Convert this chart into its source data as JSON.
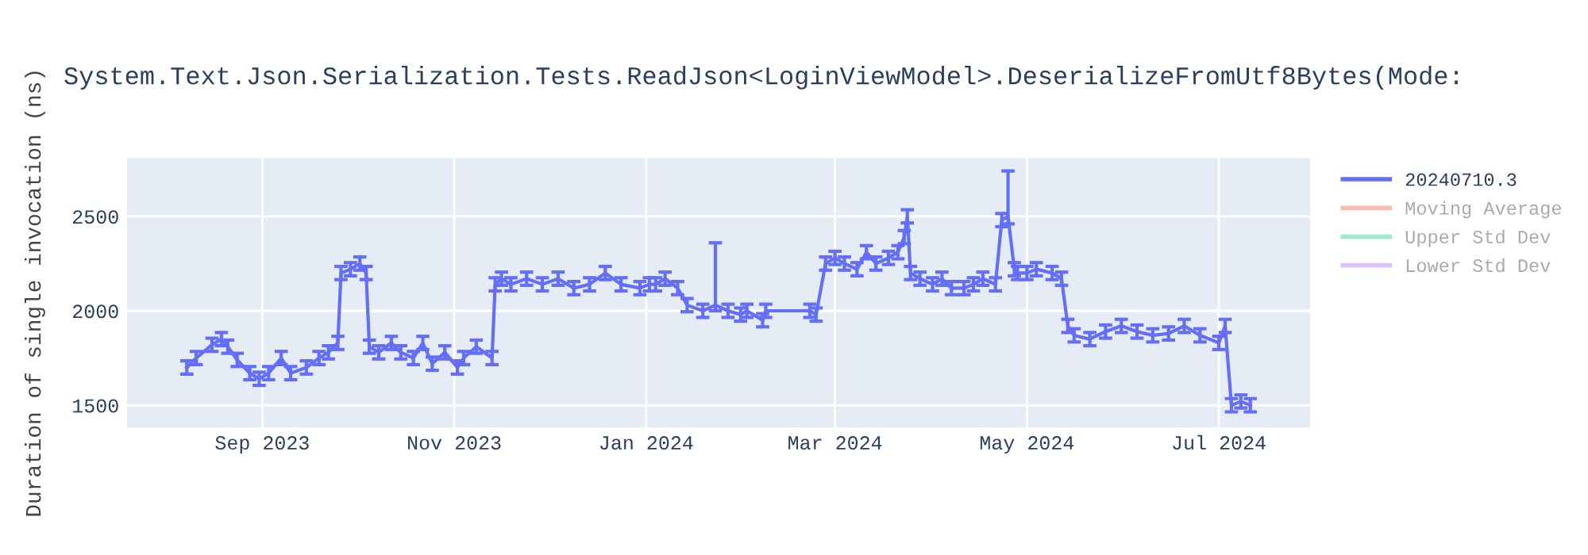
{
  "chart_data": {
    "type": "line",
    "title": "System.Text.Json.Serialization.Tests.ReadJson<LoginViewModel>.DeserializeFromUtf8Bytes(Mode:",
    "ylabel": "Duration of single invocation (ns)",
    "x": [
      "2023-08-08",
      "2023-08-11",
      "2023-08-16",
      "2023-08-19",
      "2023-08-21",
      "2023-08-24",
      "2023-08-28",
      "2023-08-31",
      "2023-09-03",
      "2023-09-07",
      "2023-09-10",
      "2023-09-15",
      "2023-09-19",
      "2023-09-22",
      "2023-09-25",
      "2023-09-26",
      "2023-09-29",
      "2023-10-02",
      "2023-10-04",
      "2023-10-05",
      "2023-10-08",
      "2023-10-12",
      "2023-10-15",
      "2023-10-19",
      "2023-10-22",
      "2023-10-25",
      "2023-10-29",
      "2023-11-02",
      "2023-11-04",
      "2023-11-08",
      "2023-11-13",
      "2023-11-14",
      "2023-11-16",
      "2023-11-19",
      "2023-11-24",
      "2023-11-29",
      "2023-12-04",
      "2023-12-09",
      "2023-12-14",
      "2023-12-19",
      "2023-12-24",
      "2023-12-30",
      "2024-01-02",
      "2024-01-04",
      "2024-01-07",
      "2024-01-11",
      "2024-01-14",
      "2024-01-19",
      "2024-01-23",
      "2024-01-27",
      "2024-01-31",
      "2024-02-02",
      "2024-02-07",
      "2024-02-08",
      "2024-02-22",
      "2024-02-24",
      "2024-02-27",
      "2024-03-01",
      "2024-03-04",
      "2024-03-08",
      "2024-03-11",
      "2024-03-14",
      "2024-03-18",
      "2024-03-21",
      "2024-03-23",
      "2024-03-24",
      "2024-03-25",
      "2024-03-28",
      "2024-04-01",
      "2024-04-04",
      "2024-04-07",
      "2024-04-11",
      "2024-04-14",
      "2024-04-17",
      "2024-04-21",
      "2024-04-23",
      "2024-04-25",
      "2024-04-27",
      "2024-04-28",
      "2024-05-01",
      "2024-05-04",
      "2024-05-09",
      "2024-05-12",
      "2024-05-14",
      "2024-05-16",
      "2024-05-21",
      "2024-05-26",
      "2024-05-31",
      "2024-06-05",
      "2024-06-10",
      "2024-06-15",
      "2024-06-20",
      "2024-06-25",
      "2024-07-01",
      "2024-07-03",
      "2024-07-05",
      "2024-07-08",
      "2024-07-11"
    ],
    "series": [
      {
        "name": "20240710.3",
        "color": "#636efa",
        "values": [
          1700,
          1750,
          1820,
          1850,
          1810,
          1740,
          1670,
          1640,
          1670,
          1750,
          1670,
          1700,
          1750,
          1780,
          1830,
          2200,
          2220,
          2250,
          2200,
          1810,
          1780,
          1830,
          1780,
          1750,
          1830,
          1720,
          1780,
          1700,
          1750,
          1810,
          1750,
          2140,
          2170,
          2140,
          2170,
          2140,
          2170,
          2120,
          2140,
          2200,
          2140,
          2120,
          2140,
          2140,
          2170,
          2120,
          2030,
          2000,
          2030,
          2000,
          1980,
          2000,
          1950,
          2000,
          2000,
          1980,
          2250,
          2280,
          2250,
          2220,
          2310,
          2250,
          2280,
          2310,
          2390,
          2500,
          2200,
          2170,
          2140,
          2170,
          2120,
          2120,
          2140,
          2170,
          2140,
          2480,
          2500,
          2220,
          2200,
          2200,
          2220,
          2200,
          2170,
          1920,
          1870,
          1850,
          1890,
          1920,
          1890,
          1870,
          1880,
          1920,
          1870,
          1830,
          1920,
          1500,
          1520,
          1500
        ],
        "errors": [
          35,
          35,
          35,
          35,
          35,
          35,
          35,
          35,
          35,
          35,
          35,
          35,
          35,
          35,
          35,
          35,
          35,
          35,
          35,
          35,
          35,
          35,
          35,
          35,
          35,
          35,
          35,
          35,
          35,
          35,
          35,
          35,
          35,
          35,
          35,
          35,
          35,
          35,
          35,
          35,
          35,
          35,
          35,
          35,
          35,
          35,
          35,
          35,
          [
            2000,
            2360
          ],
          35,
          35,
          35,
          35,
          35,
          35,
          35,
          35,
          35,
          35,
          35,
          35,
          35,
          35,
          35,
          35,
          35,
          35,
          35,
          35,
          35,
          35,
          35,
          35,
          35,
          35,
          35,
          [
            2460,
            2740
          ],
          35,
          35,
          35,
          35,
          35,
          35,
          35,
          35,
          35,
          35,
          35,
          35,
          35,
          35,
          35,
          35,
          35,
          35,
          35,
          35,
          35
        ]
      },
      {
        "name": "Moving Average",
        "color": "#ef553b",
        "values": [
          null,
          null,
          null,
          null,
          null,
          null,
          null,
          null,
          null,
          null,
          null,
          null,
          null,
          null,
          null,
          null,
          null,
          null,
          null,
          null,
          null,
          null,
          null,
          null,
          null,
          null,
          null,
          null,
          null,
          null,
          null,
          null,
          null,
          null,
          null,
          null,
          null,
          null,
          null,
          null,
          null,
          null,
          null,
          null,
          null,
          null,
          null,
          null,
          null,
          null,
          null,
          null,
          null,
          null,
          null,
          null,
          null,
          null,
          null,
          null,
          null,
          null,
          null,
          null,
          null,
          null,
          null,
          null,
          null,
          null,
          null,
          null,
          null,
          null,
          null,
          null,
          null,
          null,
          null,
          null,
          null,
          null,
          null,
          null,
          null,
          null,
          null,
          null,
          null,
          null,
          null,
          null,
          null,
          null,
          null,
          null,
          null,
          null
        ]
      },
      {
        "name": "Upper Std Dev",
        "color": "#00cc96",
        "values": [
          null,
          null,
          null,
          null,
          null,
          null,
          null,
          null,
          null,
          null,
          null,
          null,
          null,
          null,
          null,
          null,
          null,
          null,
          null,
          null,
          null,
          null,
          null,
          null,
          null,
          null,
          null,
          null,
          null,
          null,
          null,
          null,
          null,
          null,
          null,
          null,
          null,
          null,
          null,
          null,
          null,
          null,
          null,
          null,
          null,
          null,
          null,
          null,
          null,
          null,
          null,
          null,
          null,
          null,
          null,
          null,
          null,
          null,
          null,
          null,
          null,
          null,
          null,
          null,
          null,
          null,
          null,
          null,
          null,
          null,
          null,
          null,
          null,
          null,
          null,
          null,
          null,
          null,
          null,
          null,
          null,
          null,
          null,
          null,
          null,
          null,
          null,
          null,
          null,
          null,
          null,
          null,
          null,
          null,
          null,
          null,
          null,
          null
        ]
      },
      {
        "name": "Lower Std Dev",
        "color": "#ab63fa",
        "values": [
          null,
          null,
          null,
          null,
          null,
          null,
          null,
          null,
          null,
          null,
          null,
          null,
          null,
          null,
          null,
          null,
          null,
          null,
          null,
          null,
          null,
          null,
          null,
          null,
          null,
          null,
          null,
          null,
          null,
          null,
          null,
          null,
          null,
          null,
          null,
          null,
          null,
          null,
          null,
          null,
          null,
          null,
          null,
          null,
          null,
          null,
          null,
          null,
          null,
          null,
          null,
          null,
          null,
          null,
          null,
          null,
          null,
          null,
          null,
          null,
          null,
          null,
          null,
          null,
          null,
          null,
          null,
          null,
          null,
          null,
          null,
          null,
          null,
          null,
          null,
          null,
          null,
          null,
          null,
          null,
          null,
          null,
          null,
          null,
          null,
          null,
          null,
          null,
          null,
          null,
          null,
          null,
          null,
          null,
          null,
          null,
          null,
          null
        ]
      }
    ],
    "xlim": [
      "2023-07-20",
      "2024-07-30"
    ],
    "xticks": [
      {
        "value": "2023-09-01",
        "label": "Sep 2023"
      },
      {
        "value": "2023-11-01",
        "label": "Nov 2023"
      },
      {
        "value": "2024-01-01",
        "label": "Jan 2024"
      },
      {
        "value": "2024-03-01",
        "label": "Mar 2024"
      },
      {
        "value": "2024-05-01",
        "label": "May 2024"
      },
      {
        "value": "2024-07-01",
        "label": "Jul 2024"
      }
    ],
    "ylim": [
      1383,
      2808
    ],
    "yticks": [
      1500,
      2000,
      2500
    ],
    "grid": true,
    "legend": "right",
    "line_style": "solid",
    "marker": "none"
  }
}
